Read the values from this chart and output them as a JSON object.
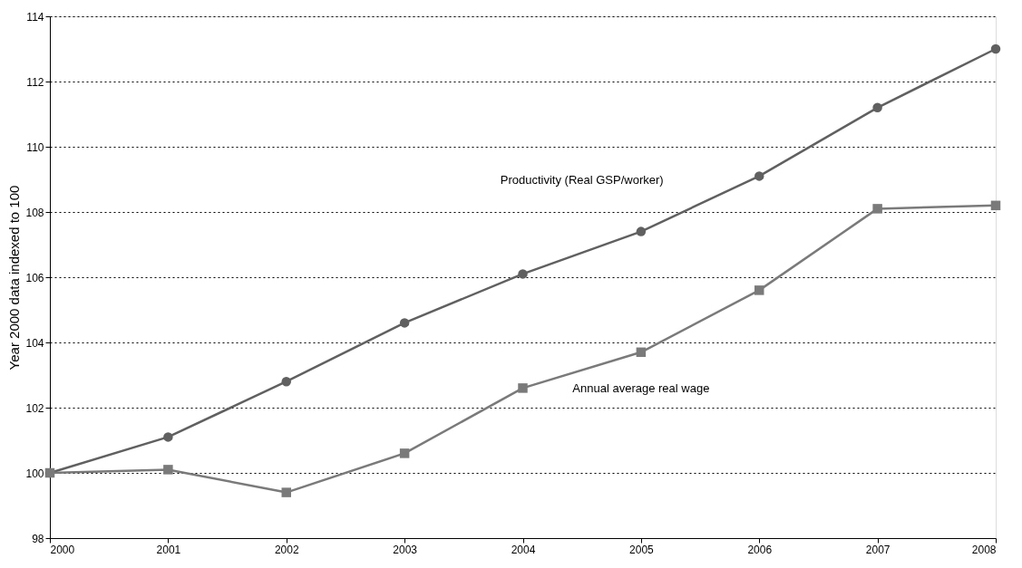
{
  "chart_data": {
    "type": "line",
    "ylabel": "Year 2000 data indexed to 100",
    "x": [
      2000,
      2001,
      2002,
      2003,
      2004,
      2005,
      2006,
      2007,
      2008
    ],
    "series": [
      {
        "name": "Productivity (Real GSP/worker)",
        "color": "#606060",
        "marker": "circle",
        "values": [
          100,
          101.1,
          102.8,
          104.6,
          106.1,
          107.4,
          109.1,
          111.2,
          113.0
        ]
      },
      {
        "name": "Annual average real wage",
        "color": "#7a7a7a",
        "marker": "square",
        "values": [
          100,
          100.1,
          99.4,
          100.6,
          102.6,
          103.7,
          105.6,
          108.1,
          108.2
        ]
      }
    ],
    "legend": false,
    "xlim": [
      2000,
      2008
    ],
    "xticks": [
      2000,
      2001,
      2002,
      2003,
      2004,
      2005,
      2006,
      2007,
      2008
    ],
    "ylim": [
      98,
      114
    ],
    "yticks": [
      98,
      100,
      102,
      104,
      106,
      108,
      110,
      112,
      114
    ],
    "grid": "y",
    "line_style": "solid"
  }
}
